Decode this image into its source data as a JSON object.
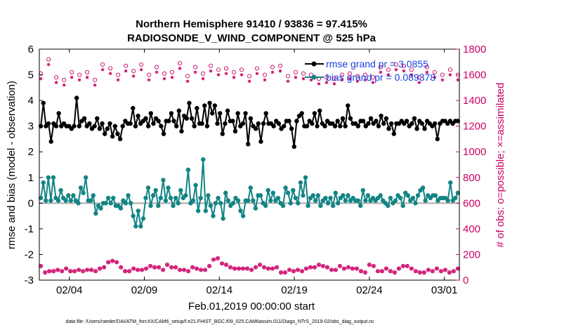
{
  "chart_data": {
    "type": "line",
    "title_line1": "Northern Hemisphere 91410 / 93836 = 97.415%",
    "title_line2": "RADIOSONDE_V_WIND_COMPONENT @ 525 hPa",
    "xlabel": "Feb.01,2019 00:00:00 start",
    "ylabel_left": "rmse and bias (model - observation)",
    "ylabel_right": "# of obs: o=possible; ×=assimilated",
    "footnote": "data file: /Users/raeder/DAI/ATM_forcXX/CAM6_setup/f.e21.FHIST_BGC.f09_025.CAM6assim.011/Diags_NTrS_2019-02/obs_diag_output.nc",
    "xlim": [
      1,
      29
    ],
    "x_ticks": [
      3,
      8,
      13,
      18,
      23,
      28
    ],
    "x_tick_labels": [
      "02/04",
      "02/09",
      "02/14",
      "02/19",
      "02/24",
      "03/01"
    ],
    "ylim_left": [
      -3,
      6
    ],
    "yticks_left": [
      "6",
      "5",
      "4",
      "3",
      "2",
      "1",
      "0",
      "-1",
      "-2",
      "-3"
    ],
    "ylim_right": [
      0,
      1800
    ],
    "yticks_right": [
      "1800",
      "1600",
      "1400",
      "1200",
      "1000",
      "800",
      "600",
      "400",
      "200",
      "0"
    ],
    "legend": {
      "rmse_label": "rmse grand pr = 3.0855",
      "bias_label": "bias grand pr = 0.089378",
      "position": "top-right"
    },
    "colors": {
      "rmse": "#000000",
      "bias": "#138484",
      "obs": "#cc0066",
      "zero": "#aaaaaa",
      "legend_text": "#1a3fe0"
    },
    "series": [
      {
        "name": "rmse",
        "values": [
          3.0,
          3.9,
          3.0,
          3.1,
          2.4,
          3.1,
          3.0,
          3.5,
          3.0,
          3.1,
          3.0,
          3.0,
          2.9,
          3.0,
          4.1,
          3.0,
          3.2,
          3.3,
          3.0,
          3.1,
          2.9,
          3.0,
          3.3,
          2.9,
          3.1,
          2.7,
          2.9,
          3.1,
          2.6,
          3.0,
          2.7,
          2.5,
          3.0,
          3.2,
          3.1,
          3.1,
          3.7,
          3.0,
          3.4,
          3.1,
          3.2,
          3.3,
          3.0,
          3.5,
          3.1,
          3.3,
          3.2,
          3.0,
          2.7,
          3.2,
          3.2,
          3.5,
          3.2,
          3.0,
          3.6,
          2.8,
          3.4,
          3.3,
          3.9,
          3.3,
          3.0,
          3.7,
          3.1,
          3.1,
          3.8,
          3.0,
          3.9,
          3.5,
          3.8,
          3.1,
          3.5,
          2.7,
          3.1,
          3.6,
          3.2,
          3.2,
          2.8,
          3.5,
          3.0,
          3.1,
          3.5,
          2.3,
          3.3,
          3.0,
          2.9,
          3.1,
          2.4,
          3.1,
          3.5,
          3.1,
          3.1,
          3.0,
          3.2,
          3.1,
          2.9,
          3.0,
          3.2,
          3.2,
          2.9,
          2.2,
          3.2,
          3.4,
          3.5,
          3.0,
          3.0,
          3.2,
          3.1,
          3.5,
          3.0,
          3.6,
          3.1,
          3.0,
          3.2,
          3.1,
          3.1,
          3.0,
          3.2,
          3.0,
          3.3,
          3.0,
          3.8,
          3.3,
          3.1,
          3.1,
          3.0,
          3.2,
          3.2,
          3.0,
          3.1,
          3.3,
          3.1,
          3.2,
          3.0,
          3.4,
          3.1,
          3.3,
          2.9,
          3.1,
          2.7,
          3.1,
          3.1,
          3.2,
          3.1,
          3.2,
          3.0,
          3.1,
          3.3,
          2.9,
          3.2,
          3.1,
          2.9,
          3.2,
          3.1,
          3.0,
          3.1,
          2.5,
          3.1,
          3.2,
          3.2,
          3.1,
          3.2,
          3.1,
          3.2,
          3.2
        ]
      },
      {
        "name": "bias",
        "values": [
          0.2,
          0.8,
          0.1,
          1.0,
          0.1,
          1.0,
          0.2,
          0.1,
          0.5,
          0.2,
          0.1,
          0.3,
          0.1,
          0.3,
          0.1,
          0.0,
          0.6,
          0.4,
          1.0,
          0.1,
          0.1,
          0.3,
          -0.4,
          -0.1,
          -0.2,
          0.0,
          0.0,
          0.2,
          0.0,
          0.2,
          -0.1,
          -0.1,
          -0.2,
          0.1,
          0.0,
          0.3,
          0.0,
          -0.5,
          -0.9,
          -0.3,
          -0.9,
          -0.6,
          0.2,
          0.6,
          -0.1,
          0.3,
          0.5,
          -0.1,
          0.2,
          0.9,
          0.1,
          0.6,
          0.2,
          -0.1,
          0.2,
          0.0,
          0.5,
          0.2,
          0.3,
          1.3,
          0.0,
          0.1,
          0.7,
          -0.3,
          0.2,
          1.7,
          -0.3,
          0.3,
          -0.1,
          -0.5,
          0.0,
          0.2,
          0.0,
          -0.6,
          0.4,
          0.1,
          -0.1,
          0.0,
          0.2,
          0.1,
          -0.3,
          -0.5,
          0.1,
          0.1,
          0.6,
          0.1,
          -0.2,
          0.3,
          0.3,
          0.0,
          -0.1,
          0.5,
          0.1,
          0.4,
          0.1,
          0.2,
          0.0,
          -0.1,
          0.6,
          0.4,
          0.0,
          0.5,
          0.2,
          0.0,
          0.8,
          0.3,
          1.0,
          -0.1,
          0.2,
          0.3,
          0.1,
          0.3,
          -0.1,
          0.1,
          0.2,
          0.0,
          0.2,
          -0.1,
          0.4,
          0.0,
          0.2,
          0.3,
          0.1,
          0.3,
          0.1,
          0.2,
          0.1,
          0.1,
          -0.1,
          0.5,
          0.1,
          0.3,
          0.1,
          0.2,
          0.1,
          0.2,
          0.3,
          0.1,
          0.0,
          -0.1,
          0.2,
          0.0,
          0.1,
          0.3,
          0.2,
          -0.1,
          0.4,
          0.3,
          0.1,
          0.2,
          0.0,
          0.3,
          0.5,
          0.6,
          0.1,
          0.3,
          0.2,
          0.3,
          0.3,
          0.1,
          0.2,
          0.2,
          0.2,
          0.1,
          0.8,
          0.1,
          0.2,
          0.4
        ]
      },
      {
        "name": "obs_possible_top",
        "values": [
          1610,
          1720,
          1580,
          1560,
          1620,
          1600,
          1620,
          1560,
          1680,
          1650,
          1600,
          1670,
          1630,
          1680,
          1600,
          1660,
          1610,
          1620,
          1690,
          1590,
          1660,
          1610,
          1670,
          1640,
          1650,
          1620,
          1640,
          1590,
          1650,
          1600,
          1660,
          1670,
          1590,
          1620,
          1610,
          1600,
          1570,
          1580,
          1570,
          1600,
          1610,
          1590,
          1600,
          1580,
          1660,
          1640,
          1680,
          1670,
          1640,
          1580,
          1660,
          1620,
          1600,
          1640,
          1600
        ]
      },
      {
        "name": "obs_assimilated_top",
        "values": [
          1570,
          1680,
          1540,
          1520,
          1580,
          1560,
          1580,
          1520,
          1640,
          1610,
          1560,
          1630,
          1590,
          1640,
          1560,
          1620,
          1570,
          1580,
          1650,
          1550,
          1620,
          1570,
          1630,
          1600,
          1610,
          1580,
          1600,
          1550,
          1610,
          1560,
          1620,
          1630,
          1550,
          1580,
          1570,
          1560,
          1530,
          1540,
          1530,
          1560,
          1570,
          1550,
          1560,
          1540,
          1620,
          1600,
          1640,
          1630,
          1600,
          1540,
          1620,
          1580,
          1560,
          1600,
          1560
        ]
      },
      {
        "name": "obs_possible_bottom",
        "values": [
          110,
          60,
          70,
          70,
          80,
          70,
          90,
          70,
          70,
          80,
          70,
          80,
          80,
          70,
          90,
          100,
          140,
          150,
          140,
          100,
          70,
          70,
          90,
          80,
          80,
          90,
          110,
          100,
          100,
          80,
          120,
          100,
          100,
          80,
          80,
          70,
          100,
          90,
          80,
          80,
          110,
          160,
          170,
          130,
          120,
          100,
          90,
          90,
          90,
          90,
          80,
          100,
          120,
          100,
          90,
          90,
          100,
          60,
          60,
          80,
          70,
          80,
          70,
          90,
          100,
          100,
          120,
          110,
          100,
          80,
          80,
          110,
          90,
          100,
          90,
          90,
          70,
          60,
          120,
          110,
          70,
          70,
          90,
          70,
          60,
          90,
          110,
          110,
          90,
          70,
          60,
          60,
          80,
          70,
          90,
          70,
          80,
          60,
          70,
          90
        ]
      },
      {
        "name": "obs_assimilated_bottom",
        "values": [
          110,
          60,
          70,
          70,
          80,
          70,
          90,
          70,
          70,
          80,
          70,
          80,
          80,
          70,
          90,
          100,
          140,
          150,
          140,
          100,
          70,
          70,
          90,
          80,
          80,
          90,
          110,
          100,
          100,
          80,
          120,
          100,
          100,
          80,
          80,
          70,
          100,
          90,
          80,
          80,
          110,
          160,
          170,
          130,
          120,
          100,
          90,
          90,
          90,
          90,
          80,
          100,
          120,
          100,
          90,
          90,
          100,
          60,
          60,
          80,
          70,
          80,
          70,
          90,
          100,
          100,
          120,
          110,
          100,
          80,
          80,
          110,
          90,
          100,
          90,
          90,
          70,
          60,
          120,
          110,
          70,
          70,
          90,
          70,
          60,
          90,
          110,
          110,
          90,
          70,
          60,
          60,
          80,
          70,
          90,
          70,
          80,
          60,
          70,
          90
        ]
      }
    ]
  }
}
